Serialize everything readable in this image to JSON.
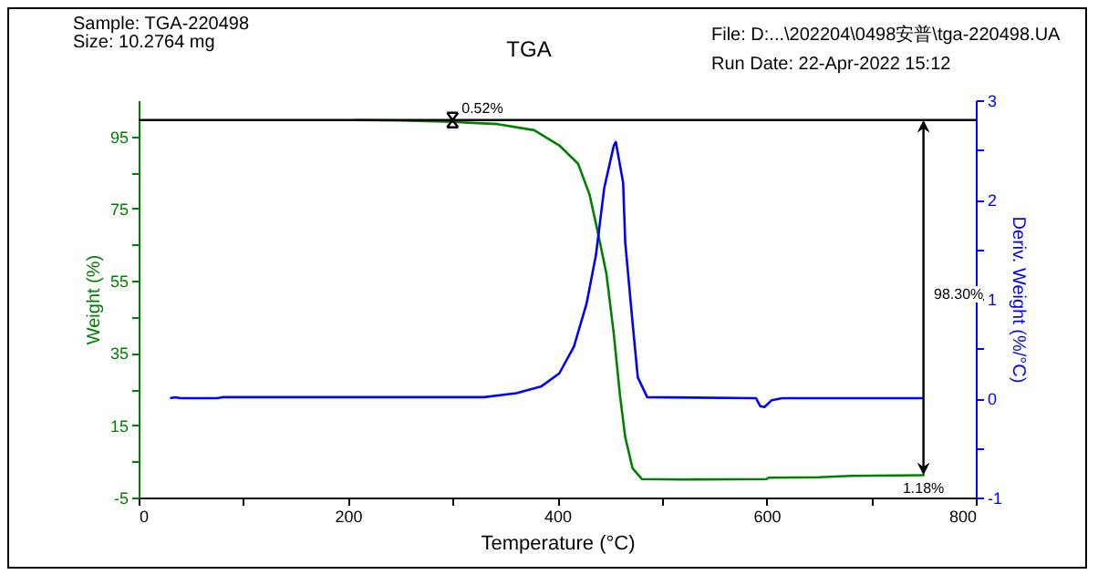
{
  "chart_data": {
    "type": "line",
    "title": "TGA",
    "annotations": [
      "Sample: TGA-220498",
      "Size:  10.2764 mg",
      "File: D:...\\202204\\0498安普\\tga-220498.UA",
      "Run Date: 22-Apr-2022 15:12",
      "98.30%",
      {
        "text": "0.52%",
        "x": 300,
        "y": 99.5
      },
      {
        "text": "1.18%",
        "x": 750,
        "y": 1.2
      }
    ],
    "xlabel": "Temperature (°C)",
    "ylabel": "Weight (%)",
    "y2label": "Deriv. Weight (%/°C)",
    "xlim": [
      0,
      800
    ],
    "xticks": [
      0,
      {
        "value": 100,
        "label": null
      },
      200,
      {
        "value": 300,
        "label": null
      },
      400,
      {
        "value": 500,
        "label": null
      },
      600,
      {
        "value": 700,
        "label": null
      },
      800
    ],
    "ylim": [
      -5,
      105
    ],
    "yticks": [
      -5,
      {
        "value": 5,
        "label": null
      },
      15,
      {
        "value": 25,
        "label": null
      },
      35,
      {
        "value": 45,
        "label": null
      },
      55,
      {
        "value": 65,
        "label": null
      },
      75,
      {
        "value": 85,
        "label": null
      },
      95
    ],
    "y2lim": [
      -1,
      3
    ],
    "y2ticks": [
      -1,
      {
        "value": -0.5,
        "label": null
      },
      0,
      {
        "value": 0.5,
        "label": null
      },
      1,
      {
        "value": 1.5,
        "label": null
      },
      2,
      {
        "value": 2.5,
        "label": null
      },
      3
    ],
    "grid": false,
    "line_style": "solid",
    "marker": "none",
    "ref_lines": [
      {
        "axis": "y",
        "value": 99.5,
        "color": "#000000"
      }
    ],
    "series": [
      {
        "color": "#008000",
        "x": [
          205,
          250,
          300,
          343,
          378,
          402,
          420,
          431,
          439,
          447,
          454,
          460,
          465,
          472,
          481,
          520,
          600,
          602,
          650,
          680,
          751
        ],
        "values": [
          99.5,
          99.4,
          99.0,
          98.4,
          96.7,
          92.5,
          87.4,
          78.8,
          68.2,
          57,
          40.5,
          23.3,
          11.7,
          3.1,
          0.1,
          0,
          0.1,
          0.5,
          0.6,
          1.0,
          1.2
        ]
      },
      {
        "color": "#0000ff",
        "axis": "y2",
        "x": [
          30,
          35,
          40,
          75,
          80,
          330,
          361,
          385,
          402,
          416,
          428,
          437,
          445,
          454,
          456,
          463,
          465,
          472,
          477,
          486,
          590,
          594,
          598,
          605,
          615,
          750
        ],
        "values": [
          0,
          0.01,
          0,
          0,
          0.01,
          0.01,
          0.05,
          0.12,
          0.25,
          0.52,
          0.95,
          1.44,
          2.12,
          2.54,
          2.58,
          2.17,
          1.57,
          0.76,
          0.21,
          0.01,
          0,
          -0.08,
          -0.09,
          -0.02,
          0,
          0
        ]
      }
    ]
  }
}
